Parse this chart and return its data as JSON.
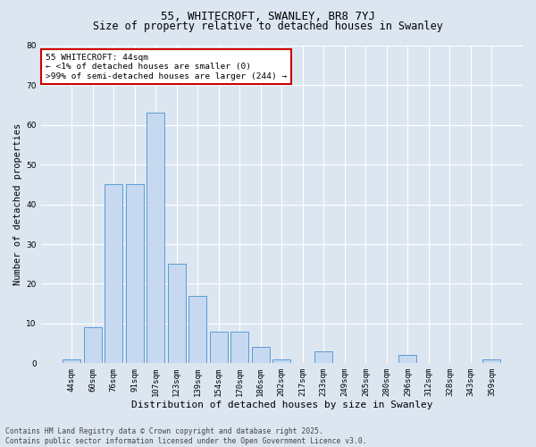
{
  "title": "55, WHITECROFT, SWANLEY, BR8 7YJ",
  "subtitle": "Size of property relative to detached houses in Swanley",
  "xlabel": "Distribution of detached houses by size in Swanley",
  "ylabel": "Number of detached properties",
  "categories": [
    "44sqm",
    "60sqm",
    "76sqm",
    "91sqm",
    "107sqm",
    "123sqm",
    "139sqm",
    "154sqm",
    "170sqm",
    "186sqm",
    "202sqm",
    "217sqm",
    "233sqm",
    "249sqm",
    "265sqm",
    "280sqm",
    "296sqm",
    "312sqm",
    "328sqm",
    "343sqm",
    "359sqm"
  ],
  "values": [
    1,
    9,
    45,
    45,
    63,
    25,
    17,
    8,
    8,
    4,
    1,
    0,
    3,
    0,
    0,
    0,
    2,
    0,
    0,
    0,
    1
  ],
  "bar_color": "#c6d9f1",
  "bar_edge_color": "#5b9bd5",
  "annotation_box_text": "55 WHITECROFT: 44sqm\n← <1% of detached houses are smaller (0)\n>99% of semi-detached houses are larger (244) →",
  "annotation_box_color": "#ffffff",
  "annotation_box_edge_color": "#cc0000",
  "ylim": [
    0,
    80
  ],
  "yticks": [
    0,
    10,
    20,
    30,
    40,
    50,
    60,
    70,
    80
  ],
  "background_color": "#dce6f1",
  "plot_bg_color": "#dce6f1",
  "grid_color": "#ffffff",
  "footer_text": "Contains HM Land Registry data © Crown copyright and database right 2025.\nContains public sector information licensed under the Open Government Licence v3.0.",
  "title_fontsize": 9,
  "subtitle_fontsize": 8.5,
  "xlabel_fontsize": 8,
  "ylabel_fontsize": 7.5,
  "tick_fontsize": 6.5,
  "annotation_fontsize": 6.8,
  "footer_fontsize": 5.8
}
